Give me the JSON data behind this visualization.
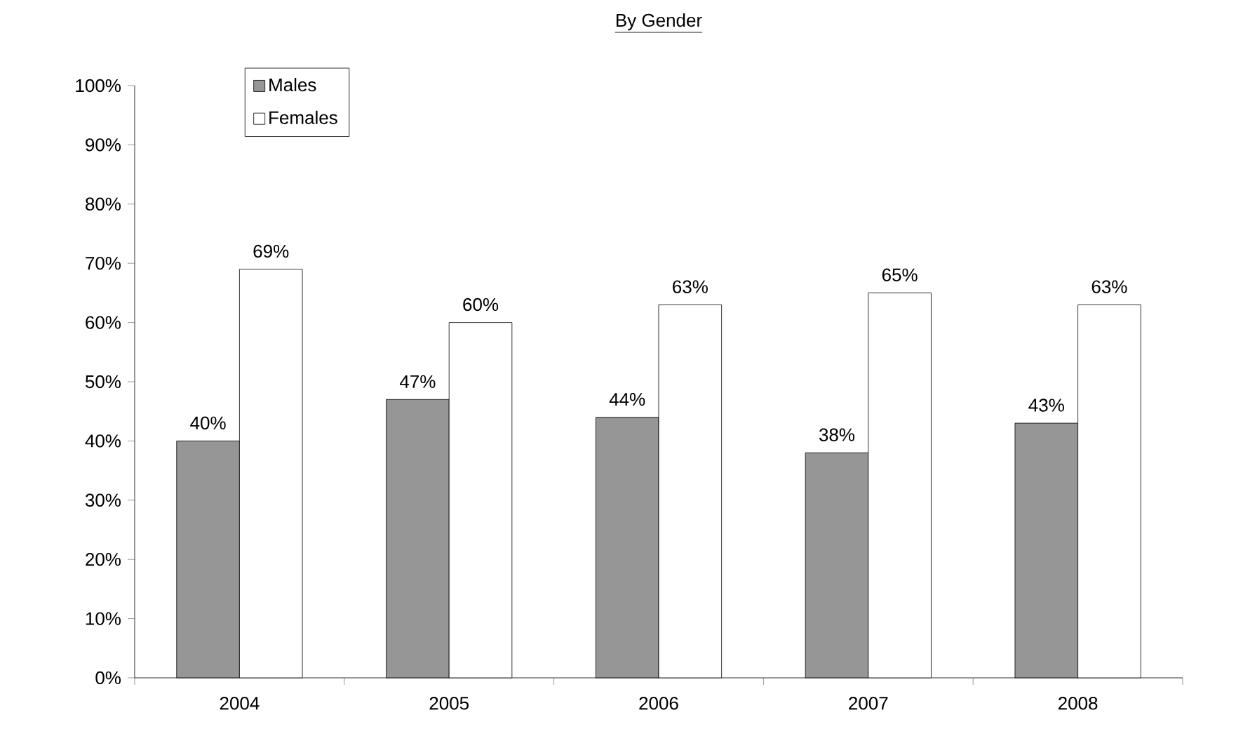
{
  "chart_data": {
    "type": "bar",
    "title": "By Gender",
    "categories": [
      "2004",
      "2005",
      "2006",
      "2007",
      "2008"
    ],
    "series": [
      {
        "name": "Males",
        "color": "#969696",
        "values": [
          40,
          47,
          44,
          38,
          43
        ],
        "value_labels": [
          "40%",
          "47%",
          "44%",
          "38%",
          "43%"
        ]
      },
      {
        "name": "Females",
        "color": "#ffffff",
        "values": [
          69,
          60,
          63,
          65,
          63
        ],
        "value_labels": [
          "69%",
          "60%",
          "63%",
          "65%",
          "63%"
        ]
      }
    ],
    "ylim": [
      0,
      100
    ],
    "yticks": [
      {
        "value": 0,
        "label": "0%"
      },
      {
        "value": 10,
        "label": "10%"
      },
      {
        "value": 20,
        "label": "20%"
      },
      {
        "value": 30,
        "label": "30%"
      },
      {
        "value": 40,
        "label": "40%"
      },
      {
        "value": 50,
        "label": "50%"
      },
      {
        "value": 60,
        "label": "60%"
      },
      {
        "value": 70,
        "label": "70%"
      },
      {
        "value": 80,
        "label": "80%"
      },
      {
        "value": 90,
        "label": "90%"
      },
      {
        "value": 100,
        "label": "100%"
      }
    ],
    "grid": false,
    "legend": "top left"
  }
}
